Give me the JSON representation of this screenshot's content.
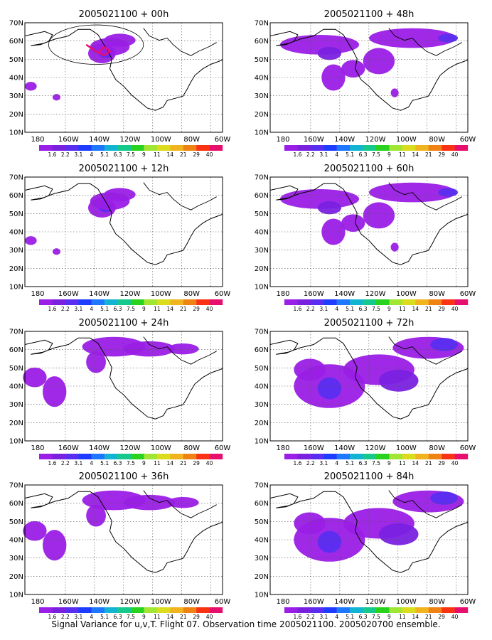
{
  "caption": "Signal Variance for u,v,T. Flight 07. Observation time 2005021100. 2005020700 ensemble.",
  "colorbar": {
    "labels": [
      "1.6",
      "2.2",
      "3.1",
      "4",
      "5.1",
      "6.3",
      "7.5",
      "9",
      "11",
      "14",
      "21",
      "29",
      "40"
    ],
    "colors": [
      "#9a1ee6",
      "#7a21e0",
      "#5a2ef0",
      "#1e3cff",
      "#1e78ff",
      "#13b4d2",
      "#15c88c",
      "#28d21e",
      "#a0e632",
      "#dcdc1e",
      "#f0b41e",
      "#f08214",
      "#fa3214",
      "#e60f6e"
    ]
  },
  "axes": {
    "lat_labels": [
      "70N",
      "60N",
      "50N",
      "40N",
      "30N",
      "20N",
      "10N"
    ],
    "lon_labels": [
      "180",
      "160W",
      "140W",
      "120W",
      "100W",
      "80W",
      "60W"
    ]
  },
  "panels": [
    {
      "title": "2005021100 + 00h",
      "zoom": 1
    },
    {
      "title": "2005021100 + 48h",
      "zoom": 3
    },
    {
      "title": "2005021100 + 12h",
      "zoom": 1
    },
    {
      "title": "2005021100 + 60h",
      "zoom": 3
    },
    {
      "title": "2005021100 + 24h",
      "zoom": 2
    },
    {
      "title": "2005021100 + 72h",
      "zoom": 4
    },
    {
      "title": "2005021100 + 36h",
      "zoom": 2
    },
    {
      "title": "2005021100 + 84h",
      "zoom": 4
    }
  ]
}
